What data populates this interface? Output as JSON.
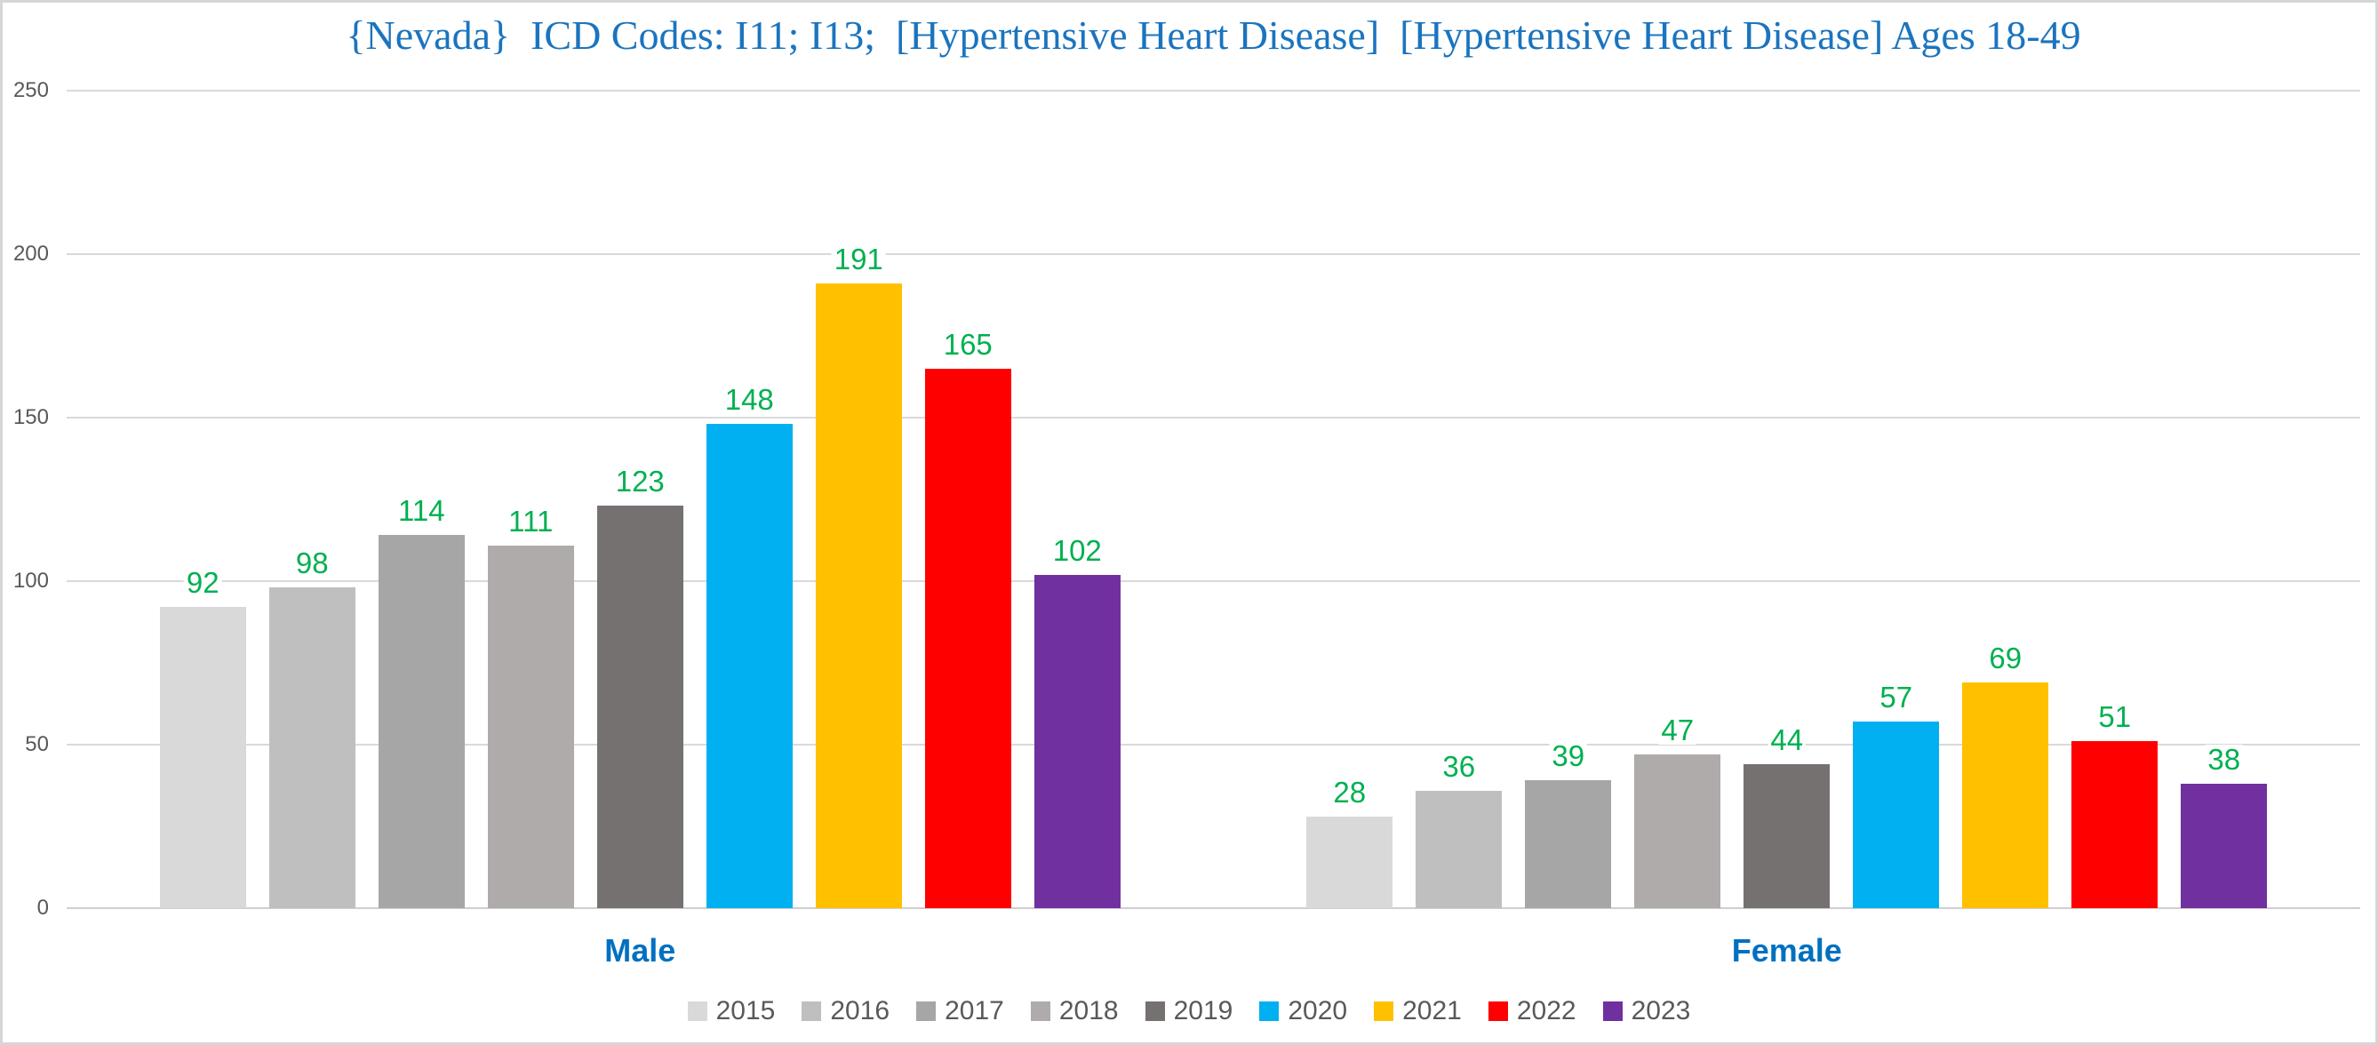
{
  "title": {
    "text": "{Nevada}  ICD Codes: I11; I13;  [Hypertensive Heart Disease]  [Hypertensive Heart Disease] Ages 18-49",
    "color": "#1B74BE"
  },
  "chart_data": {
    "type": "bar",
    "categories": [
      "Male",
      "Female"
    ],
    "series": [
      {
        "name": "2015",
        "color": "#D9D9D9",
        "values": [
          92,
          28
        ]
      },
      {
        "name": "2016",
        "color": "#BFBFBF",
        "values": [
          98,
          36
        ]
      },
      {
        "name": "2017",
        "color": "#A6A6A6",
        "values": [
          114,
          39
        ]
      },
      {
        "name": "2018",
        "color": "#AFABAB",
        "values": [
          111,
          47
        ]
      },
      {
        "name": "2019",
        "color": "#767171",
        "values": [
          123,
          44
        ]
      },
      {
        "name": "2020",
        "color": "#00B0F0",
        "values": [
          148,
          57
        ]
      },
      {
        "name": "2021",
        "color": "#FFC000",
        "values": [
          191,
          69
        ]
      },
      {
        "name": "2022",
        "color": "#FF0000",
        "values": [
          165,
          51
        ]
      },
      {
        "name": "2023",
        "color": "#7030A0",
        "values": [
          102,
          38
        ]
      }
    ],
    "ylim": [
      0,
      250
    ],
    "yticks": [
      0,
      50,
      100,
      150,
      200,
      250
    ],
    "grid": true,
    "legend_position": "bottom",
    "data_label_color": "#00B050",
    "category_label_color": "#0070C0",
    "tick_label_color": "#595959",
    "gridline_color": "#D9D9D9"
  }
}
